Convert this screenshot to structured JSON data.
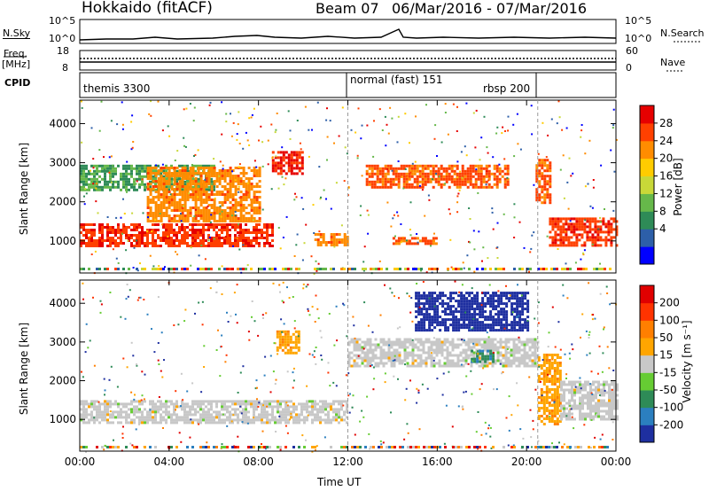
{
  "header": {
    "station": "Hokkaido (fitACF)",
    "beam": "Beam 07",
    "date_range": "06/Mar/2016 - 07/Mar/2016"
  },
  "summary": {
    "nsky_label": "N.Sky",
    "nsky_ticks": [
      "10^5",
      "10^0"
    ],
    "nsearch_label": "N.Search",
    "nsearch_ticks": [
      "10^5",
      "10^0"
    ],
    "freq_label": "Freq.",
    "freq_unit": "[MHz]",
    "freq_ticks": [
      "18",
      "8"
    ],
    "nave_label": "Nave",
    "nave_ticks": [
      "60",
      "0"
    ],
    "cpid_label": "CPID",
    "cpid_segments": [
      {
        "name": "themis 3300",
        "start_h": 0,
        "end_h": 12
      },
      {
        "name": "normal (fast) 151",
        "start_h": 12,
        "end_h": 20.5
      },
      {
        "name": "rbsp 200",
        "start_h": 20.5,
        "end_h": 24
      }
    ]
  },
  "axes": {
    "xlabel": "Time UT",
    "ylabel": "Slant Range [km]",
    "xticks": [
      "00:00",
      "04:00",
      "08:00",
      "12:00",
      "16:00",
      "20:00",
      "00:00"
    ],
    "yticks": [
      "1000",
      "2000",
      "3000",
      "4000"
    ]
  },
  "colorbars": {
    "power": {
      "label": "Power [dB]",
      "ticks": [
        "28",
        "24",
        "20",
        "16",
        "12",
        "8",
        "4"
      ],
      "colors": [
        "#0000ff",
        "#2d5fa8",
        "#2e8b57",
        "#66b84a",
        "#c8d838",
        "#ffcc00",
        "#ff8c00",
        "#ff4000",
        "#e60000"
      ]
    },
    "velocity": {
      "label": "Velocity [m s⁻¹]",
      "ticks": [
        "200",
        "100",
        "50",
        "15",
        "-15",
        "-50",
        "-100",
        "-200"
      ],
      "colors": [
        "#1e2fa0",
        "#2b7fbf",
        "#2e8b57",
        "#66cc33",
        "#c8c8c8",
        "#ffa500",
        "#ff7f00",
        "#ff3300",
        "#e00000"
      ]
    }
  },
  "chart_data": [
    {
      "type": "heatmap",
      "title": "Power",
      "xlabel": "Time UT",
      "ylabel": "Slant Range [km]",
      "xlim_hours": [
        0,
        24
      ],
      "ylim_km": [
        180,
        4600
      ],
      "colorbar": {
        "label": "Power [dB]",
        "range": [
          0,
          30
        ]
      },
      "regions": [
        {
          "t0": 0.0,
          "t1": 8.6,
          "r0": 900,
          "r1": 1450,
          "value": 26
        },
        {
          "t0": 0.0,
          "t1": 6.0,
          "r0": 2300,
          "r1": 2950,
          "value": 10
        },
        {
          "t0": 3.0,
          "t1": 8.0,
          "r0": 1500,
          "r1": 2900,
          "value": 22
        },
        {
          "t0": 8.6,
          "t1": 10.0,
          "r0": 2700,
          "r1": 3300,
          "value": 27
        },
        {
          "t0": 12.8,
          "t1": 19.2,
          "r0": 2400,
          "r1": 2950,
          "value": 24
        },
        {
          "t0": 20.4,
          "t1": 21.0,
          "r0": 2000,
          "r1": 3100,
          "value": 24
        },
        {
          "t0": 21.0,
          "t1": 24.0,
          "r0": 900,
          "r1": 1600,
          "value": 26
        },
        {
          "t0": 10.5,
          "t1": 12.0,
          "r0": 900,
          "r1": 1200,
          "value": 22
        },
        {
          "t0": 14.0,
          "t1": 16.0,
          "r0": 900,
          "r1": 1100,
          "value": 24
        }
      ]
    },
    {
      "type": "heatmap",
      "title": "Velocity",
      "xlabel": "Time UT",
      "ylabel": "Slant Range [km]",
      "xlim_hours": [
        0,
        24
      ],
      "ylim_km": [
        180,
        4600
      ],
      "colorbar": {
        "label": "Velocity [m s⁻¹]",
        "range": [
          -200,
          200
        ]
      },
      "regions": [
        {
          "t0": 0.0,
          "t1": 12.0,
          "r0": 900,
          "r1": 1500,
          "value": 0
        },
        {
          "t0": 12.0,
          "t1": 20.5,
          "r0": 2400,
          "r1": 3100,
          "value": 0
        },
        {
          "t0": 8.8,
          "t1": 9.8,
          "r0": 2700,
          "r1": 3300,
          "value": 50
        },
        {
          "t0": 15.0,
          "t1": 20.0,
          "r0": 3300,
          "r1": 4300,
          "value": -200
        },
        {
          "t0": 17.5,
          "t1": 18.5,
          "r0": 2500,
          "r1": 2800,
          "value": -100
        },
        {
          "t0": 20.5,
          "t1": 21.5,
          "r0": 900,
          "r1": 2700,
          "value": 50
        },
        {
          "t0": 21.5,
          "t1": 24.0,
          "r0": 1000,
          "r1": 2000,
          "value": 0
        }
      ]
    }
  ]
}
